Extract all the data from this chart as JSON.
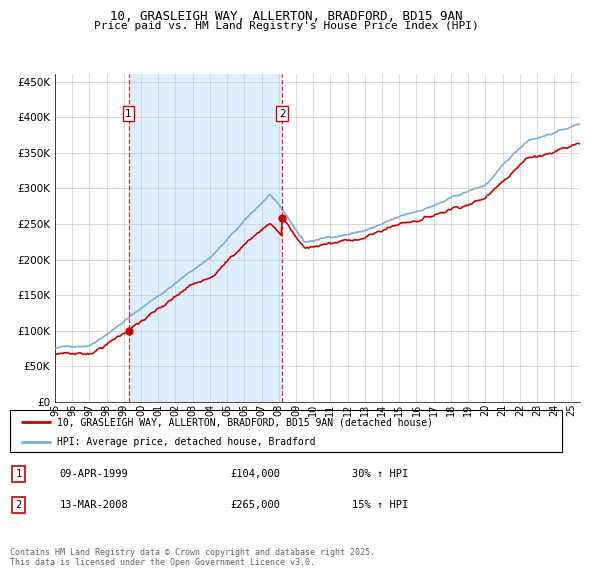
{
  "title_line1": "10, GRASLEIGH WAY, ALLERTON, BRADFORD, BD15 9AN",
  "title_line2": "Price paid vs. HM Land Registry's House Price Index (HPI)",
  "legend_entry1": "10, GRASLEIGH WAY, ALLERTON, BRADFORD, BD15 9AN (detached house)",
  "legend_entry2": "HPI: Average price, detached house, Bradford",
  "transaction1_date": "09-APR-1999",
  "transaction1_price": "£104,000",
  "transaction1_hpi": "30% ↑ HPI",
  "transaction2_date": "13-MAR-2008",
  "transaction2_price": "£265,000",
  "transaction2_hpi": "15% ↑ HPI",
  "footer": "Contains HM Land Registry data © Crown copyright and database right 2025.\nThis data is licensed under the Open Government Licence v3.0.",
  "transaction1_year": 1999.27,
  "transaction1_value": 104000,
  "transaction2_year": 2008.2,
  "transaction2_value": 265000,
  "property_color": "#cc0000",
  "hpi_color": "#7aaddb",
  "shade_color": "#ddeeff",
  "vline_color": "#cc0000",
  "background_color": "#ffffff",
  "grid_color": "#cccccc",
  "ylim": [
    0,
    460000
  ],
  "xlim_start": 1995,
  "xlim_end": 2025.5
}
